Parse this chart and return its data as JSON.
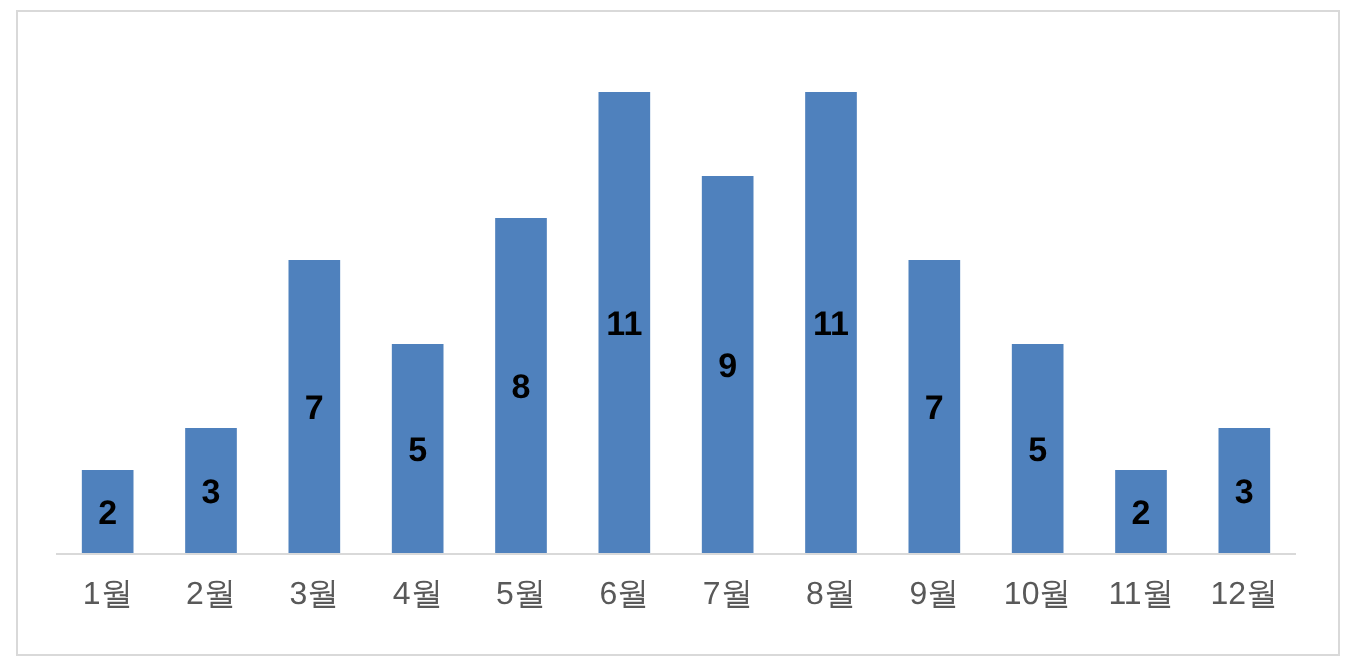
{
  "chart_data": {
    "type": "bar",
    "categories": [
      "1월",
      "2월",
      "3월",
      "4월",
      "5월",
      "6월",
      "7월",
      "8월",
      "9월",
      "10월",
      "11월",
      "12월"
    ],
    "values": [
      2,
      3,
      7,
      5,
      8,
      11,
      9,
      11,
      7,
      5,
      2,
      3
    ],
    "color": "#4f81bd",
    "data_labels": true
  }
}
